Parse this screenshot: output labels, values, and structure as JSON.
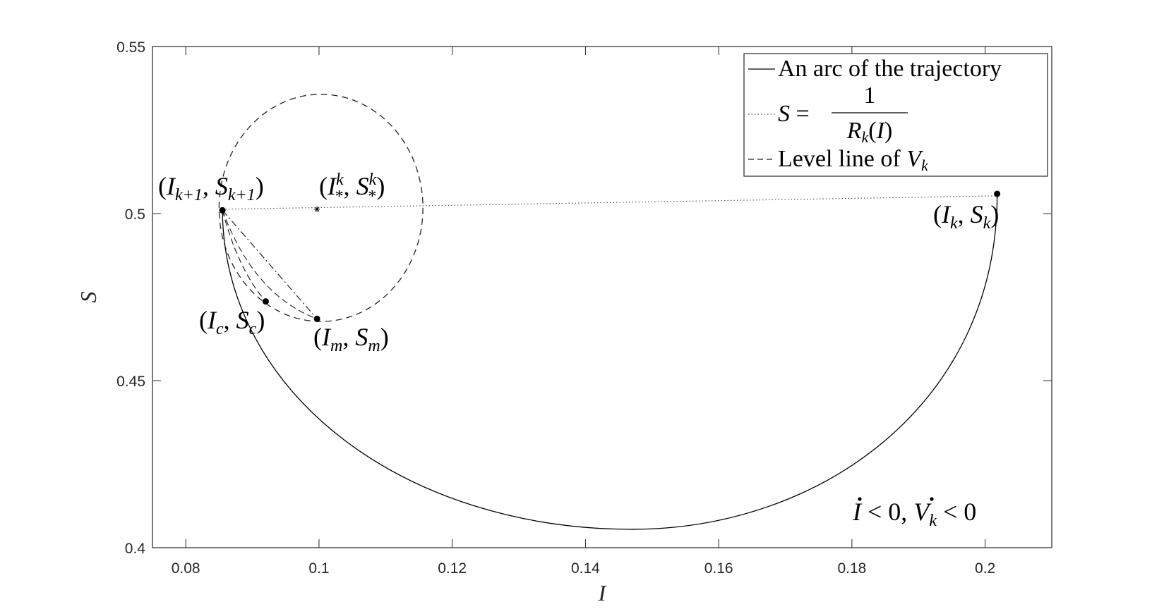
{
  "chart_data": {
    "type": "line",
    "title": "",
    "xlabel": "I",
    "ylabel": "S",
    "xlim": [
      0.075,
      0.21
    ],
    "ylim": [
      0.4,
      0.55
    ],
    "xticks": [
      "0.08",
      "0.1",
      "0.12",
      "0.14",
      "0.16",
      "0.18",
      "0.2"
    ],
    "xtick_values": [
      0.08,
      0.1,
      0.12,
      0.14,
      0.16,
      0.18,
      0.2
    ],
    "yticks": [
      "0.4",
      "0.45",
      "0.5",
      "0.55"
    ],
    "ytick_values": [
      0.4,
      0.45,
      0.5,
      0.55
    ],
    "legend_position": "top-right",
    "legend": [
      {
        "text": "An arc of the trajectory",
        "style": "solid"
      },
      {
        "text_prefix": "S = ",
        "numerator": "1",
        "denominator": "R",
        "denominator_sub": "k",
        "denominator_suffix": "(I)",
        "style": "dotted"
      },
      {
        "text": "Level line of ",
        "var": "V",
        "var_sub": "k",
        "style": "dashed"
      }
    ],
    "trajectory_arc": {
      "start": [
        0.2018,
        0.5055
      ],
      "end": [
        0.0855,
        0.5005
      ],
      "min_point": [
        0.147,
        0.4055
      ],
      "style": "solid"
    },
    "nullcline": {
      "x": [
        0.0855,
        0.2018
      ],
      "y": [
        0.5013,
        0.5053
      ],
      "style": "dotted"
    },
    "level_line": {
      "center": [
        0.1003,
        0.5017
      ],
      "rx": 0.0153,
      "ry": 0.034,
      "style": "dashed"
    },
    "secant_line": {
      "points": [
        [
          0.0855,
          0.501
        ],
        [
          0.0997,
          0.4685
        ]
      ],
      "style": "dashdot"
    },
    "curve_to_c": {
      "points": [
        [
          0.0855,
          0.501
        ],
        [
          0.092,
          0.4737
        ]
      ],
      "style": "dashed"
    },
    "points": [
      {
        "id": "Ik1",
        "x": 0.0855,
        "y": 0.501,
        "marker": "dot",
        "label": "(I",
        "sub": "k+1",
        "mid": ", S",
        "sub2": "k+1",
        "end": ")"
      },
      {
        "id": "Istar",
        "x": 0.0997,
        "y": 0.5013,
        "marker": "star",
        "label": "(I",
        "sup": "k",
        "sub": "*",
        "mid": ", S",
        "sup2": "k",
        "sub2": "*",
        "end": ")"
      },
      {
        "id": "Ik",
        "x": 0.2018,
        "y": 0.5059,
        "marker": "dot",
        "label": "(I",
        "sub": "k",
        "mid": ", S",
        "sub2": "k",
        "end": ")"
      },
      {
        "id": "Ic",
        "x": 0.092,
        "y": 0.4737,
        "marker": "dot",
        "label": "(I",
        "sub": "c",
        "mid": ", S",
        "sub2": "c",
        "end": ")"
      },
      {
        "id": "Im",
        "x": 0.0997,
        "y": 0.4685,
        "marker": "dot",
        "label": "(I",
        "sub": "m",
        "mid": ", S",
        "sub2": "m",
        "end": ")"
      }
    ],
    "annotation": {
      "part1": "I",
      "part2": " < 0, ",
      "part3": "V",
      "sub": "k",
      "part4": " < 0"
    }
  }
}
